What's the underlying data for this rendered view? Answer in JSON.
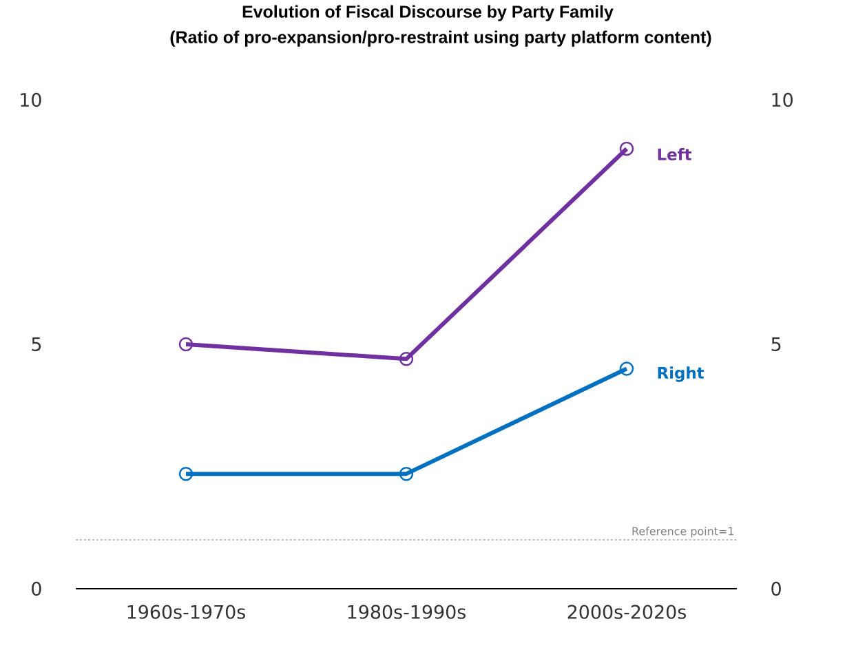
{
  "chart_data": {
    "type": "line",
    "title": "Evolution of Fiscal Discourse by Party Family",
    "subtitle": "(Ratio of pro-expansion/pro-restraint using party platform content)",
    "categories": [
      "1960s-1970s",
      "1980s-1990s",
      "2000s-2020s"
    ],
    "series": [
      {
        "name": "Left",
        "color": "#7030a0",
        "values": [
          5.0,
          4.7,
          9.0
        ]
      },
      {
        "name": "Right",
        "color": "#0070c0",
        "values": [
          2.35,
          2.35,
          4.5
        ]
      }
    ],
    "ylim": [
      0,
      10
    ],
    "yticks": [
      0,
      5,
      10
    ],
    "y2lim": [
      0,
      10
    ],
    "y2ticks": [
      0,
      5,
      10
    ],
    "ref_lines": [
      {
        "axis": "y",
        "value": 1,
        "label": "Reference point=1",
        "color": "#808080",
        "line_style": "dashed"
      }
    ],
    "marker": "circle",
    "line_style": "solid",
    "grid": false
  }
}
